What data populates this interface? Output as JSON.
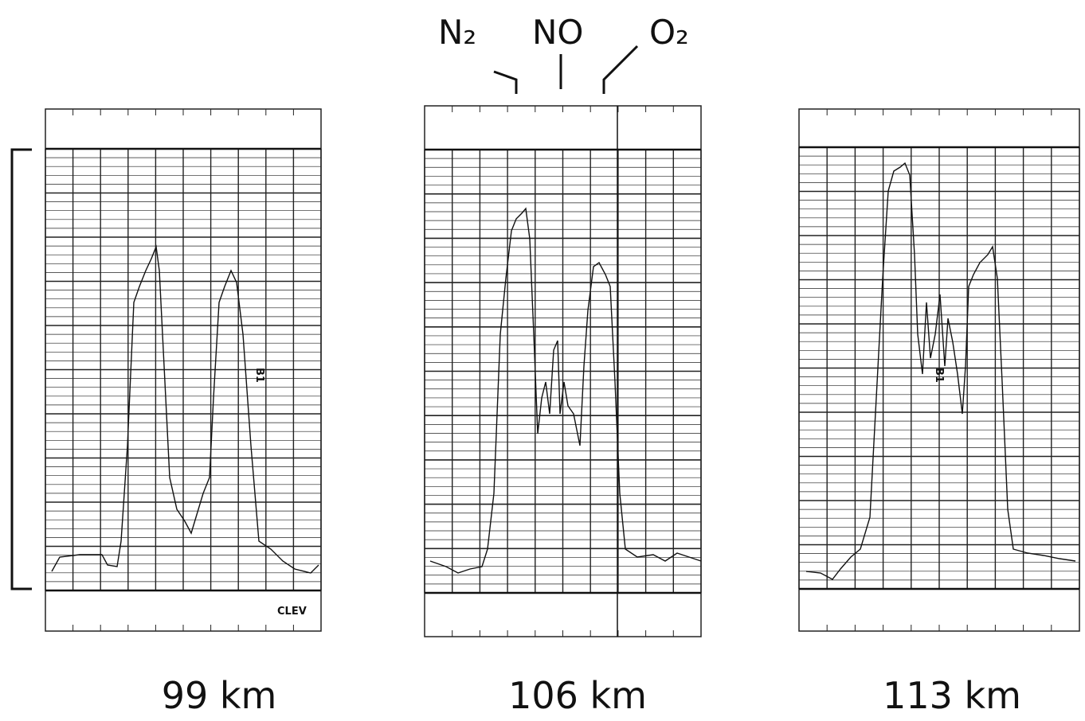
{
  "header": {
    "labels": [
      "N₂",
      "NO",
      "O₂"
    ]
  },
  "panels": [
    {
      "caption": "99 km",
      "annotations": [
        "B1",
        "CLEV"
      ]
    },
    {
      "caption": "106 km",
      "annotations": []
    },
    {
      "caption": "113 km",
      "annotations": [
        "B1"
      ]
    }
  ]
}
